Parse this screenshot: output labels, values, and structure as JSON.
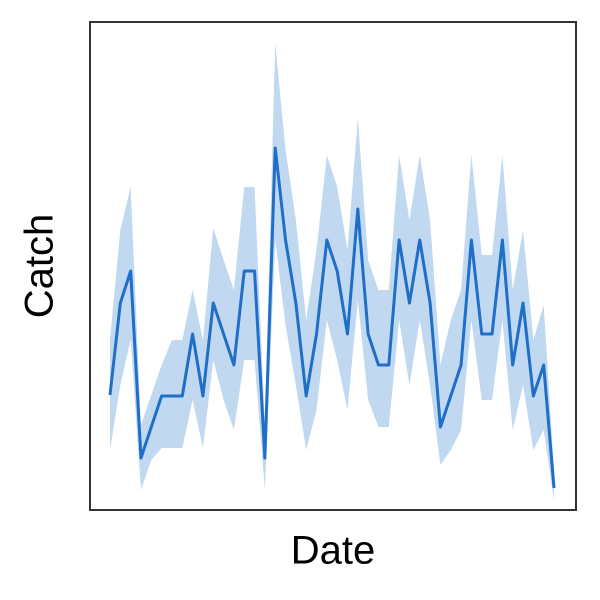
{
  "chart_data": {
    "type": "line",
    "x_label": "Date",
    "y_label": "Catch",
    "categories": [
      null,
      null,
      null,
      null,
      null,
      null,
      null,
      null,
      null,
      null,
      null,
      null,
      null,
      null,
      null,
      null,
      null,
      null,
      null,
      null,
      null,
      null,
      null,
      null,
      null,
      null,
      null,
      null,
      null,
      null,
      null,
      null,
      null,
      null,
      null,
      null,
      null,
      null,
      null,
      null,
      null,
      null,
      null,
      null
    ],
    "ylim": [
      0,
      48.8
    ],
    "series": [
      {
        "color": "#1f6fc8",
        "band_color": "#c0d8f0",
        "values": [
          11.5,
          20.7,
          23.9,
          5.2,
          8.3,
          11.4,
          11.4,
          11.4,
          17.6,
          11.4,
          20.7,
          17.6,
          14.5,
          23.9,
          23.9,
          5.2,
          36.2,
          27,
          20.7,
          11.4,
          17.6,
          27,
          23.9,
          17.6,
          30.1,
          17.6,
          14.5,
          14.5,
          27,
          20.7,
          27,
          20.7,
          8.3,
          11.4,
          14.5,
          27,
          17.6,
          17.6,
          27,
          14.5,
          20.7,
          11.4,
          14.5,
          2.2
        ],
        "upper": [
          17,
          28,
          32.3,
          8.5,
          11.5,
          14.5,
          17,
          17,
          22,
          17,
          28.2,
          25,
          22,
          32.3,
          32.3,
          8.5,
          46.7,
          36,
          29,
          19,
          26,
          35.5,
          32.3,
          26,
          39.2,
          25,
          22,
          22,
          35.5,
          29,
          35.5,
          29,
          14.5,
          19,
          22,
          35.5,
          25.5,
          25.5,
          35.5,
          22,
          28,
          17,
          20.5,
          4
        ],
        "lower": [
          6,
          12.5,
          17,
          2,
          5,
          6.2,
          6.2,
          6.2,
          11,
          6.2,
          15,
          11,
          8,
          15,
          15,
          2,
          27,
          18.5,
          12.5,
          6,
          10,
          19,
          15,
          10,
          21,
          11,
          8.3,
          8.3,
          19,
          12.5,
          19,
          12.5,
          4.5,
          6,
          8,
          19,
          11,
          11,
          19,
          8,
          12.5,
          6,
          8,
          1
        ]
      }
    ]
  }
}
